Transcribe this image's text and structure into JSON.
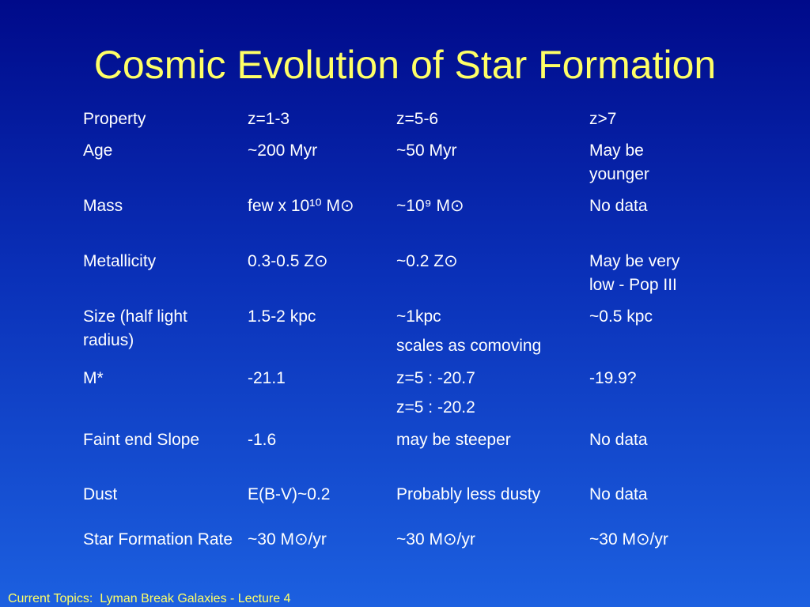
{
  "title": "Cosmic Evolution of Star Formation",
  "table": {
    "rows": [
      [
        "Property",
        "z=1-3",
        "z=5-6",
        "z>7"
      ],
      [
        "Age",
        "~200 Myr",
        "~50 Myr",
        "May be younger"
      ],
      [
        "Mass",
        "few x 10¹⁰ M⊙",
        "~10⁹ M⊙",
        "No data"
      ],
      [
        "Metallicity",
        "0.3-0.5 Z⊙",
        "~0.2 Z⊙",
        "May be very low - Pop III"
      ],
      [
        "Size (half light radius)",
        "1.5-2 kpc",
        [
          "~1kpc",
          "scales as comoving"
        ],
        "~0.5 kpc"
      ],
      [
        "M*",
        "-21.1",
        [
          "z=5 : -20.7",
          "z=5 : -20.2"
        ],
        "-19.9?"
      ],
      [
        "Faint end Slope",
        "-1.6",
        "may be steeper",
        "No data"
      ],
      [
        "Dust",
        "E(B-V)~0.2",
        "Probably less dusty",
        "No data"
      ],
      [
        "Star Formation Rate",
        "~30 M⊙/yr",
        "~30 M⊙/yr",
        "~30 M⊙/yr"
      ]
    ]
  },
  "footer": "Current Topics:  Lyman Break Galaxies - Lecture 4"
}
